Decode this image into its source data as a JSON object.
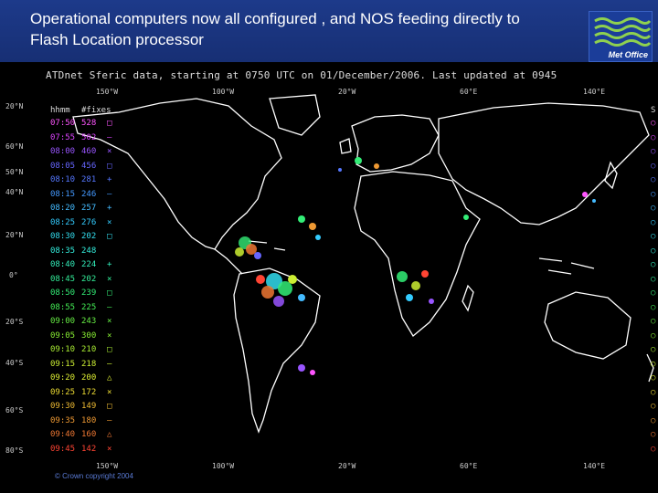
{
  "slide": {
    "title": "Operational computers now all configured , and NOS feeding directly to Flash Location processor",
    "logo_text": "Met Office",
    "copyright": "© Crown copyright 2004"
  },
  "map": {
    "title": "ATDnet Sferic data, starting at 0750 UTC on 01/December/2006.  Last updated at 0945",
    "lon_ticks_top": [
      "150°W",
      "100°W",
      "20°W",
      "60°E",
      "140°E"
    ],
    "lon_ticks_bottom": [
      "150°W",
      "100°W",
      "20°W",
      "60°E",
      "140°E"
    ],
    "lat_ticks": [
      "20°N",
      "60°N",
      "50°N",
      "40°N",
      "20°N",
      "0°",
      "20°S",
      "40°S",
      "60°S",
      "80°S"
    ],
    "right_col_head": "S",
    "legend": {
      "head_time": "hhmm",
      "head_count": "#fixes",
      "rows": [
        {
          "time": "07:50",
          "count": "528",
          "sym": "□",
          "color": "#ff55ff"
        },
        {
          "time": "07:55",
          "count": "502",
          "sym": "–",
          "color": "#dd44ff"
        },
        {
          "time": "08:00",
          "count": "460",
          "sym": "×",
          "color": "#9955ff"
        },
        {
          "time": "08:05",
          "count": "456",
          "sym": "□",
          "color": "#6666ff"
        },
        {
          "time": "08:10",
          "count": "281",
          "sym": "+",
          "color": "#5577ff"
        },
        {
          "time": "08:15",
          "count": "246",
          "sym": "–",
          "color": "#4499ff"
        },
        {
          "time": "08:20",
          "count": "257",
          "sym": "+",
          "color": "#44bbff"
        },
        {
          "time": "08:25",
          "count": "276",
          "sym": "×",
          "color": "#33ccff"
        },
        {
          "time": "08:30",
          "count": "202",
          "sym": "□",
          "color": "#33ddee"
        },
        {
          "time": "08:35",
          "count": "248",
          "sym": "",
          "color": "#33eedd"
        },
        {
          "time": "08:40",
          "count": "224",
          "sym": "+",
          "color": "#33eebb"
        },
        {
          "time": "08:45",
          "count": "202",
          "sym": "×",
          "color": "#33ee99"
        },
        {
          "time": "08:50",
          "count": "239",
          "sym": "□",
          "color": "#33ee77"
        },
        {
          "time": "08:55",
          "count": "225",
          "sym": "–",
          "color": "#44ee55"
        },
        {
          "time": "09:00",
          "count": "243",
          "sym": "×",
          "color": "#66ee44"
        },
        {
          "time": "09:05",
          "count": "300",
          "sym": "×",
          "color": "#88ee33"
        },
        {
          "time": "09:10",
          "count": "210",
          "sym": "□",
          "color": "#aaee33"
        },
        {
          "time": "09:15",
          "count": "218",
          "sym": "–",
          "color": "#ccee33"
        },
        {
          "time": "09:20",
          "count": "200",
          "sym": "△",
          "color": "#ddee33"
        },
        {
          "time": "09:25",
          "count": "172",
          "sym": "×",
          "color": "#eedd33"
        },
        {
          "time": "09:30",
          "count": "149",
          "sym": "□",
          "color": "#eebb33"
        },
        {
          "time": "09:35",
          "count": "180",
          "sym": "–",
          "color": "#ee9933"
        },
        {
          "time": "09:40",
          "count": "160",
          "sym": "△",
          "color": "#ee7733"
        },
        {
          "time": "09:45",
          "count": "142",
          "sym": "×",
          "color": "#ff4433"
        }
      ]
    }
  }
}
